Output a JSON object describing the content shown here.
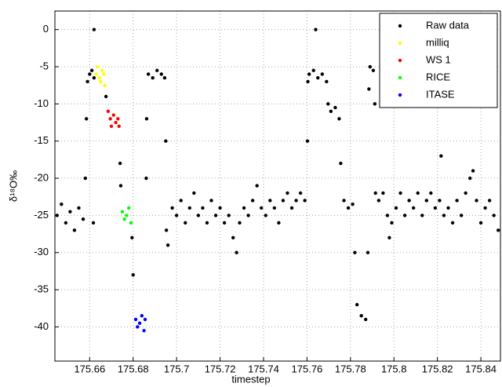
{
  "chart_data": {
    "type": "scatter",
    "xlabel": "timestep",
    "ylabel": "δ¹⁸O‰",
    "xlim": [
      175.644,
      175.849
    ],
    "ylim": [
      -44.6,
      2.5
    ],
    "xticks": [
      175.66,
      175.68,
      175.7,
      175.72,
      175.74,
      175.76,
      175.78,
      175.8,
      175.82,
      175.84
    ],
    "yticks": [
      0,
      -5,
      -10,
      -15,
      -20,
      -25,
      -30,
      -35,
      -40
    ],
    "grid": true,
    "legend": "upper-right",
    "series": [
      {
        "name": "Raw data",
        "color": "#000000",
        "x": [
          175.645,
          175.647,
          175.649,
          175.651,
          175.653,
          175.655,
          175.657,
          175.658,
          175.6585,
          175.659,
          175.66,
          175.661,
          175.662,
          175.662,
          175.6617,
          175.6675,
          175.674,
          175.6743,
          175.6795,
          175.68,
          175.686,
          175.6862,
          175.687,
          175.689,
          175.691,
          175.693,
          175.6945,
          175.695,
          175.6953,
          175.696,
          175.698,
          175.7,
          175.702,
          175.704,
          175.706,
          175.708,
          175.71,
          175.712,
          175.714,
          175.716,
          175.718,
          175.72,
          175.722,
          175.724,
          175.726,
          175.7276,
          175.729,
          175.731,
          175.733,
          175.735,
          175.737,
          175.739,
          175.741,
          175.743,
          175.745,
          175.747,
          175.749,
          175.751,
          175.753,
          175.755,
          175.757,
          175.759,
          175.7602,
          175.7604,
          175.761,
          175.763,
          175.764,
          175.765,
          175.767,
          175.769,
          175.7697,
          175.771,
          175.773,
          175.7748,
          175.7755,
          175.777,
          175.779,
          175.781,
          175.782,
          175.783,
          175.785,
          175.787,
          175.788,
          175.7885,
          175.789,
          175.7905,
          175.7912,
          175.7915,
          175.793,
          175.795,
          175.797,
          175.7979,
          175.799,
          175.801,
          175.803,
          175.805,
          175.807,
          175.809,
          175.811,
          175.813,
          175.815,
          175.817,
          175.819,
          175.8217,
          175.821,
          175.823,
          175.825,
          175.827,
          175.829,
          175.831,
          175.833,
          175.835,
          175.8364,
          175.838,
          175.84,
          175.842,
          175.844,
          175.846,
          175.848
        ],
        "values": [
          -25,
          -23.5,
          -26,
          -24.5,
          -27,
          -24,
          -25.5,
          -20,
          -12,
          -7,
          -6,
          -5.5,
          -6.5,
          0,
          -26,
          -9,
          -18,
          -21,
          -28,
          -33,
          -20,
          -12,
          -6,
          -6.5,
          -5.5,
          -6,
          -6.5,
          -15,
          -27,
          -29,
          -24,
          -25,
          -23,
          -26,
          -24,
          -22,
          -25,
          -24,
          -26,
          -23,
          -25,
          -24,
          -26,
          -25,
          -28,
          -30,
          -26,
          -24,
          -25,
          -23,
          -21,
          -24,
          -25,
          -23,
          -24,
          -26,
          -23,
          -22,
          -24,
          -23,
          -22,
          -23,
          -15,
          -7,
          -6,
          -5.5,
          0,
          -6.5,
          -6,
          -7,
          -10,
          -11,
          -10.5,
          -12,
          -18,
          -23,
          -24,
          -23.5,
          -30,
          -37,
          -38.5,
          -39,
          -30,
          -8,
          -5,
          -5.5,
          -10,
          -22,
          -23,
          -22,
          -25,
          -28,
          -26,
          -24,
          -22,
          -25,
          -23,
          -24,
          -22,
          -25,
          -23,
          -22,
          -24,
          -17,
          -23,
          -25,
          -24,
          -26,
          -23,
          -25,
          -22,
          -20,
          -19,
          -23,
          -26,
          -24,
          -23,
          -25,
          -27
        ]
      },
      {
        "name": "milliq",
        "color": "#ffff00",
        "x": [
          175.663,
          175.6638,
          175.6645,
          175.665,
          175.6657,
          175.6665,
          175.667
        ],
        "values": [
          -6,
          -5,
          -6.5,
          -7,
          -5.5,
          -6,
          -7.5
        ]
      },
      {
        "name": "WS 1",
        "color": "#ff0000",
        "x": [
          175.6685,
          175.6695,
          175.67,
          175.671,
          175.672,
          175.673,
          175.6735
        ],
        "values": [
          -11,
          -12,
          -13,
          -11.5,
          -12.5,
          -12,
          -13
        ]
      },
      {
        "name": "RICE",
        "color": "#00ff00",
        "x": [
          175.675,
          175.676,
          175.677,
          175.678,
          175.679
        ],
        "values": [
          -24.5,
          -25.5,
          -25,
          -24,
          -26
        ]
      },
      {
        "name": "ITASE",
        "color": "#0000ff",
        "x": [
          175.6812,
          175.682,
          175.683,
          175.684,
          175.685,
          175.6855
        ],
        "values": [
          -39,
          -40,
          -39.5,
          -38.5,
          -40.5,
          -39
        ]
      }
    ]
  }
}
